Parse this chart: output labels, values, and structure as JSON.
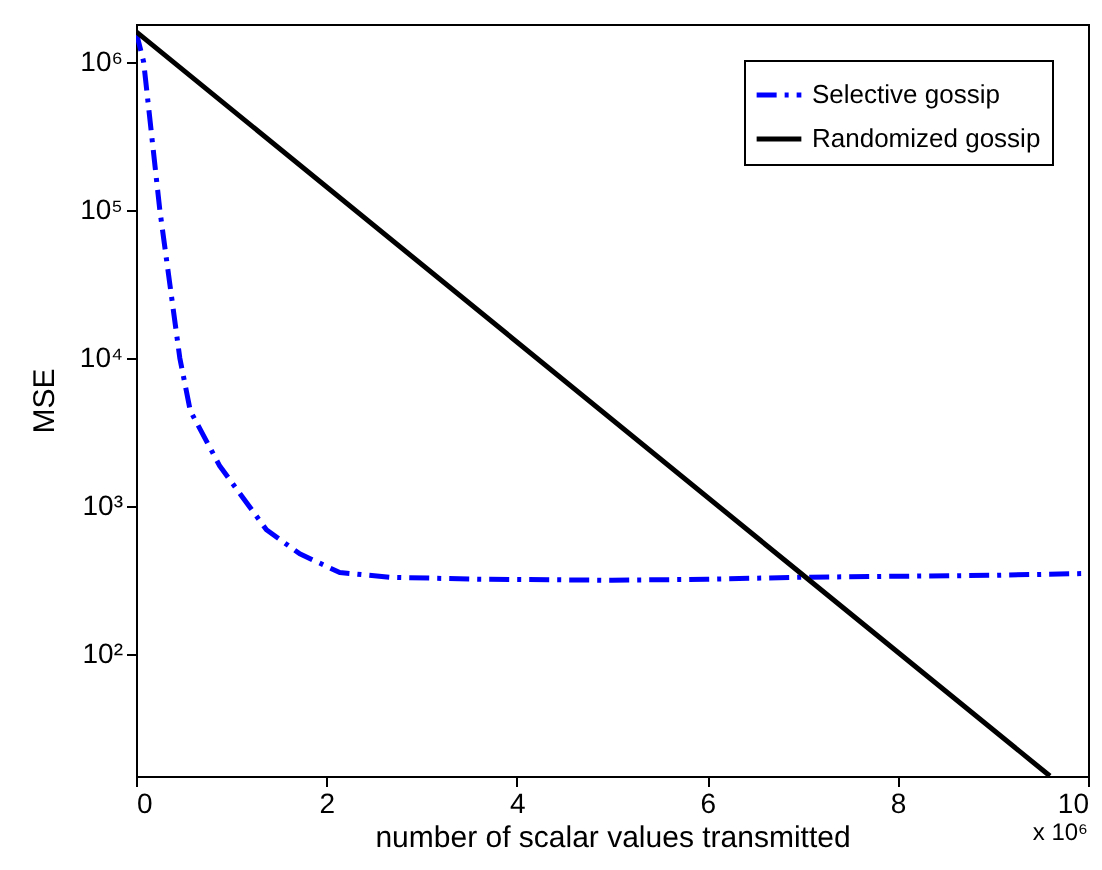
{
  "chart_data": {
    "type": "line",
    "xlabel": "number of scalar values transmitted",
    "ylabel": "MSE",
    "log": "y",
    "xlim": [
      0,
      10
    ],
    "xticks": [
      0,
      2,
      4,
      6,
      8,
      10
    ],
    "ylim": [
      15,
      1800000
    ],
    "yticks": [
      {
        "value": 100,
        "label": "10²"
      },
      {
        "value": 1000,
        "label": "10³"
      },
      {
        "value": 10000,
        "label": "10⁴"
      },
      {
        "value": 100000,
        "label": "10⁵"
      },
      {
        "value": 1000000,
        "label": "10⁶"
      }
    ],
    "annotations": [
      "x 10⁶"
    ],
    "legend": "top right",
    "grid": false,
    "series": [
      {
        "name": "Selective gossip",
        "color": "#0000ff",
        "line_style": "dashed",
        "x": [
          0,
          0.08,
          0.25,
          0.46,
          0.57,
          0.88,
          1.37,
          1.72,
          2.14,
          2.67,
          3.6,
          5,
          6,
          7,
          8,
          9,
          10
        ],
        "values": [
          1600000,
          1000000,
          100000,
          10000,
          4400,
          1860,
          690,
          475,
          355,
          330,
          320,
          315,
          320,
          330,
          335,
          340,
          350
        ]
      },
      {
        "name": "Randomized gossip",
        "color": "#000000",
        "line_style": "solid",
        "x": [
          0,
          7.07,
          9.6
        ],
        "values": [
          1600000,
          316,
          15
        ]
      }
    ]
  }
}
